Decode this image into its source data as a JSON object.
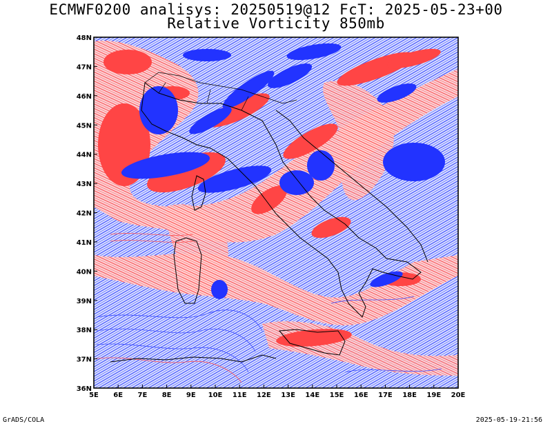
{
  "header": {
    "line1": "ECMWF0200 analisys: 20250519@12 FcT: 2025-05-23+00",
    "line2": "Relative Vorticity 850mb"
  },
  "footer": {
    "left": "GrADS/COLA",
    "right": "2025-05-19-21:56"
  },
  "map": {
    "lon_range": [
      5,
      20
    ],
    "lat_range": [
      36,
      48
    ],
    "lon_ticks": [
      "5E",
      "6E",
      "7E",
      "8E",
      "9E",
      "10E",
      "11E",
      "12E",
      "13E",
      "14E",
      "15E",
      "16E",
      "17E",
      "18E",
      "19E",
      "20E"
    ],
    "lat_ticks": [
      "36N",
      "37N",
      "38N",
      "39N",
      "40N",
      "41N",
      "42N",
      "43N",
      "44N",
      "45N",
      "46N",
      "47N",
      "48N"
    ],
    "colors": {
      "positive_vorticity": "#ff4040",
      "negative_vorticity": "#2d3cff",
      "coastline": "#000000"
    }
  }
}
